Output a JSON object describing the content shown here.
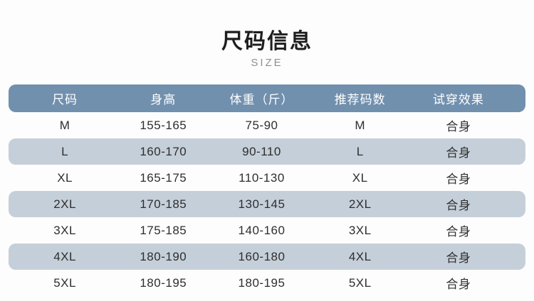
{
  "header": {
    "title": "尺码信息",
    "subtitle": "SIZE"
  },
  "chart_data": {
    "type": "table",
    "title": "尺码信息",
    "subtitle": "SIZE",
    "columns": [
      "尺码",
      "身高",
      "体重（斤）",
      "推荐码数",
      "试穿效果"
    ],
    "rows": [
      [
        "M",
        "155-165",
        "75-90",
        "M",
        "合身"
      ],
      [
        "L",
        "160-170",
        "90-110",
        "L",
        "合身"
      ],
      [
        "XL",
        "165-175",
        "110-130",
        "XL",
        "合身"
      ],
      [
        "2XL",
        "170-185",
        "130-145",
        "2XL",
        "合身"
      ],
      [
        "3XL",
        "175-185",
        "140-160",
        "3XL",
        "合身"
      ],
      [
        "4XL",
        "180-190",
        "160-180",
        "4XL",
        "合身"
      ],
      [
        "5XL",
        "180-195",
        "180-195",
        "5XL",
        "合身"
      ]
    ],
    "layout_hints": {
      "striped_rows": "even rows shaded",
      "header_style": "rounded pill, white text"
    }
  },
  "colors": {
    "header_bg": "#7190ae",
    "header_text": "#ffffff",
    "stripe_bg": "#c5cfd9",
    "body_text": "#2e2e2e",
    "title_text": "#1e1e1e",
    "subtitle_text": "#8f8f8f",
    "page_bg": "#fdfdfd"
  }
}
